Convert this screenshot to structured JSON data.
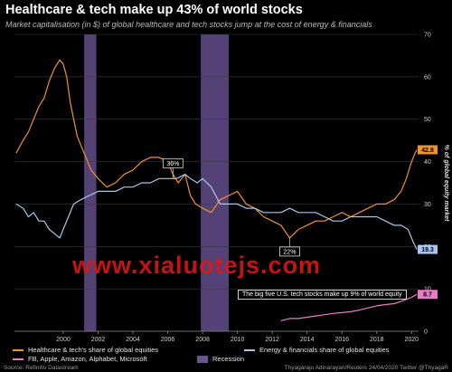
{
  "title": "Healthcare & tech make up 43% of world stocks",
  "subtitle": "Market capitalisation (in $) of global healthcare and tech stocks jump at the cost of energy & financials",
  "watermark": "www.xialuotejs.com",
  "source": "Source: Refinitiv Datastream",
  "credit": "Thyagaraju Adinarayan/Reuters 24/04/2020 Twitter @ThyagaR",
  "colors": {
    "healthcare_tech": "#f0922f",
    "energy_fin": "#a9c6ee",
    "faang": "#e97dc4",
    "recession": "#6b5396"
  },
  "chart_data": {
    "type": "line",
    "ylabel": "% of global equity market",
    "ylim": [
      0,
      70
    ],
    "xlim": [
      1997.2,
      2020.4
    ],
    "y_ticks": [
      "0",
      "10",
      "20",
      "30",
      "40",
      "50",
      "60",
      "70"
    ],
    "y_tick_values": [
      0,
      10,
      20,
      30,
      40,
      50,
      60,
      70
    ],
    "x_ticks": [
      "2000",
      "2002",
      "2004",
      "2006",
      "2008",
      "2010",
      "2012",
      "2014",
      "2016",
      "2018",
      "2020"
    ],
    "x_tick_values": [
      2000,
      2002,
      2004,
      2006,
      2008,
      2010,
      2012,
      2014,
      2016,
      2018,
      2020
    ],
    "recessions": [
      [
        2001.2,
        2001.9
      ],
      [
        2007.9,
        2009.5
      ]
    ],
    "series": [
      {
        "name": "Healthcare & tech's share of global equities",
        "key": "healthcare_tech",
        "x": [
          1997.3,
          1997.7,
          1998.0,
          1998.3,
          1998.6,
          1998.9,
          1999.2,
          1999.5,
          1999.8,
          2000.0,
          2000.2,
          2000.4,
          2000.6,
          2000.8,
          2001.0,
          2001.3,
          2001.6,
          2002.0,
          2002.5,
          2003.0,
          2003.5,
          2004.0,
          2004.5,
          2005.0,
          2005.5,
          2006.0,
          2006.3,
          2006.6,
          2007.0,
          2007.3,
          2007.6,
          2008.0,
          2008.5,
          2009.0,
          2009.5,
          2010.0,
          2010.5,
          2011.0,
          2011.5,
          2012.0,
          2012.5,
          2013.0,
          2013.5,
          2014.0,
          2014.5,
          2015.0,
          2015.5,
          2016.0,
          2016.5,
          2017.0,
          2017.5,
          2018.0,
          2018.5,
          2019.0,
          2019.4,
          2019.7,
          2020.0,
          2020.2,
          2020.3
        ],
        "y": [
          42,
          45,
          47,
          50,
          53,
          55,
          59,
          62,
          64,
          63,
          60,
          54,
          50,
          46,
          44,
          41,
          38,
          36,
          34,
          35,
          37,
          38,
          40,
          41,
          41,
          40,
          37,
          35,
          37,
          32,
          30,
          29,
          28,
          31,
          32,
          33,
          30,
          29,
          27,
          26,
          25,
          22,
          24,
          25,
          26,
          26,
          27,
          28,
          27,
          28,
          29,
          30,
          30,
          31,
          33,
          36,
          40,
          42,
          42.8
        ]
      },
      {
        "name": "Energy & financials share of global equities",
        "key": "energy_fin",
        "x": [
          1997.3,
          1997.7,
          1998.0,
          1998.3,
          1998.6,
          1998.9,
          1999.2,
          1999.5,
          1999.8,
          2000.0,
          2000.3,
          2000.6,
          2001.0,
          2001.5,
          2002.0,
          2002.5,
          2003.0,
          2003.5,
          2004.0,
          2004.5,
          2005.0,
          2005.5,
          2006.0,
          2006.5,
          2007.0,
          2007.3,
          2007.7,
          2008.0,
          2008.5,
          2009.0,
          2009.5,
          2010.0,
          2010.5,
          2011.0,
          2011.5,
          2012.0,
          2012.5,
          2013.0,
          2013.5,
          2014.0,
          2014.5,
          2015.0,
          2015.5,
          2016.0,
          2016.5,
          2017.0,
          2017.5,
          2018.0,
          2018.5,
          2019.0,
          2019.4,
          2019.8,
          2020.1,
          2020.3
        ],
        "y": [
          30,
          29,
          27,
          28,
          26,
          26,
          24,
          23,
          22,
          24,
          27,
          30,
          31,
          32,
          33,
          33,
          33,
          34,
          34,
          35,
          35,
          36,
          36,
          36,
          37,
          36,
          35,
          36,
          34,
          30,
          30,
          30,
          29,
          29,
          28,
          28,
          28,
          29,
          28,
          28,
          28,
          27,
          26,
          26,
          27,
          27,
          27,
          27,
          26,
          25,
          25,
          24,
          21,
          19.3
        ]
      },
      {
        "name": "FB, Apple, Amazon, Alphabet, Microsoft",
        "key": "faang",
        "x": [
          2012.5,
          2013.0,
          2013.5,
          2014.0,
          2014.5,
          2015.0,
          2015.5,
          2016.0,
          2016.5,
          2017.0,
          2017.5,
          2018.0,
          2018.5,
          2019.0,
          2019.5,
          2020.0,
          2020.3
        ],
        "y": [
          2.5,
          3,
          3,
          3.3,
          3.6,
          3.9,
          4.2,
          4.4,
          4.6,
          5.0,
          5.5,
          6.0,
          6.3,
          6.5,
          7.2,
          8.0,
          8.7
        ]
      }
    ],
    "end_labels": [
      {
        "key": "healthcare_tech",
        "text": "42.8",
        "y": 42.8
      },
      {
        "key": "energy_fin",
        "text": "19.3",
        "y": 19.3
      },
      {
        "key": "faang",
        "text": "8.7",
        "y": 8.7
      }
    ],
    "callouts": [
      {
        "text": "36%",
        "x": 2006.3,
        "y": 36
      },
      {
        "text": "22%",
        "x": 2013.0,
        "y": 22
      }
    ],
    "annotation": "The big five U.S. tech stocks make up 9% of world equity",
    "legend": [
      {
        "key": "healthcare_tech",
        "label": "Healthcare & tech's share of global equities"
      },
      {
        "key": "energy_fin",
        "label": "Energy & financials share of global equities"
      },
      {
        "key": "faang",
        "label": "FB, Apple, Amazon, Alphabet, Microsoft"
      },
      {
        "key": "recession",
        "label": "Recession"
      }
    ]
  }
}
